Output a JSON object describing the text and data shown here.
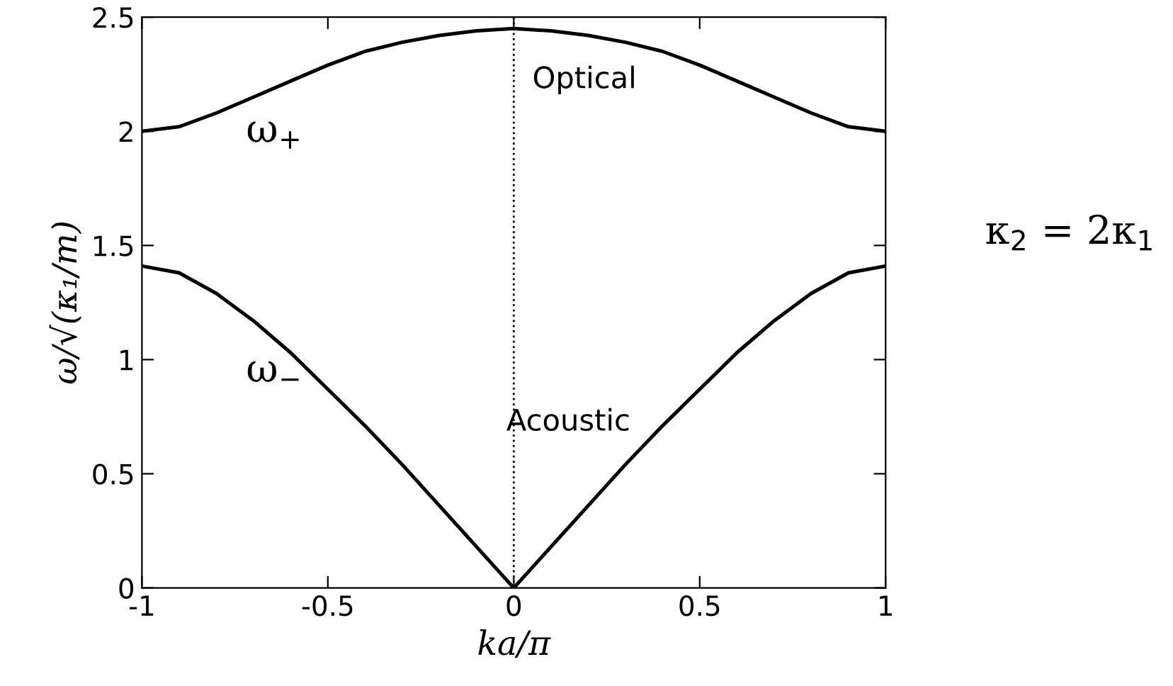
{
  "chart_data": {
    "type": "line",
    "xlabel": "ka/π",
    "ylabel": "ω/√(κ₁/m)",
    "x": [
      -1,
      -0.9,
      -0.8,
      -0.7,
      -0.6,
      -0.5,
      -0.4,
      -0.3,
      -0.2,
      -0.1,
      0,
      0.1,
      0.2,
      0.3,
      0.4,
      0.5,
      0.6,
      0.7,
      0.8,
      0.9,
      1
    ],
    "series": [
      {
        "color": "#000000",
        "values": [
          2.0,
          2.02,
          2.08,
          2.15,
          2.22,
          2.29,
          2.35,
          2.39,
          2.42,
          2.44,
          2.45,
          2.44,
          2.42,
          2.39,
          2.35,
          2.29,
          2.22,
          2.15,
          2.08,
          2.02,
          2.0
        ]
      },
      {
        "color": "#000000",
        "values": [
          1.41,
          1.38,
          1.29,
          1.17,
          1.03,
          0.87,
          0.71,
          0.54,
          0.36,
          0.18,
          0,
          0.18,
          0.36,
          0.54,
          0.71,
          0.87,
          1.03,
          1.17,
          1.29,
          1.38,
          1.41
        ]
      }
    ],
    "xlim": [
      -1,
      1
    ],
    "ylim": [
      0,
      2.5
    ],
    "xticks": [
      -1,
      -0.5,
      0,
      0.5,
      1
    ],
    "yticks": [
      0,
      0.5,
      1,
      1.5,
      2,
      2.5
    ],
    "ref_lines": [
      {
        "axis": "x",
        "value": 0,
        "color": "#000000",
        "line_style": "dotted"
      }
    ],
    "marker": "none",
    "line_style": "solid",
    "grid": false,
    "legend": false,
    "annotations": [
      "Optical",
      "ω$_{+}$",
      "ω$_{−}$",
      "Acoustic",
      "κ$_{2}$ = 2κ$_{1}$"
    ]
  }
}
